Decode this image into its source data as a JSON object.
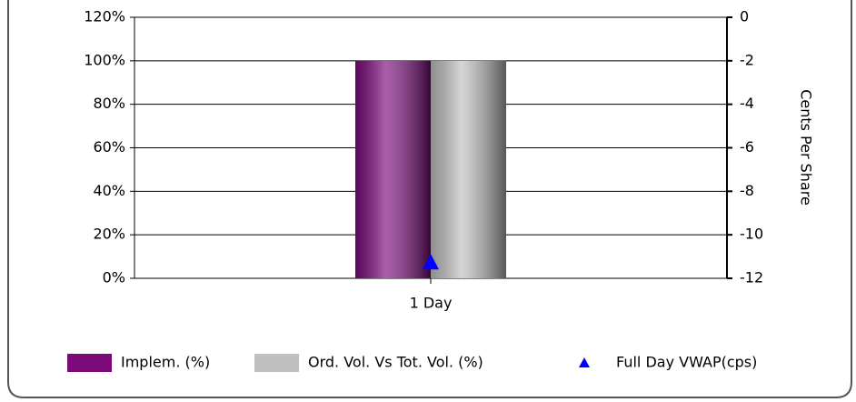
{
  "chart_data": {
    "type": "bar",
    "categories": [
      "1 Day"
    ],
    "series": [
      {
        "name": "Implem. (%)",
        "color": "#7b0a7b",
        "values": [
          100
        ]
      },
      {
        "name": "Ord. Vol. Vs Tot. Vol. (%)",
        "color": "#c0c0c0",
        "values": [
          100
        ]
      },
      {
        "name": "Full Day VWAP(cps)",
        "type": "scatter",
        "marker": "triangle",
        "color": "#0000ff",
        "axis": "y2",
        "values": [
          -11.3
        ]
      }
    ],
    "ylim": [
      0,
      120
    ],
    "yticks": [
      {
        "value": 0,
        "label": "0%"
      },
      {
        "value": 20,
        "label": "20%"
      },
      {
        "value": 40,
        "label": "40%"
      },
      {
        "value": 60,
        "label": "60%"
      },
      {
        "value": 80,
        "label": "80%"
      },
      {
        "value": 100,
        "label": "100%"
      },
      {
        "value": 120,
        "label": "120%"
      }
    ],
    "y2lim": [
      -12,
      0
    ],
    "y2ticks": [
      -12,
      -10,
      -8,
      -6,
      -4,
      -2,
      0
    ],
    "y2label": "Cents Per Share",
    "grid": true,
    "legend": "bottom"
  }
}
